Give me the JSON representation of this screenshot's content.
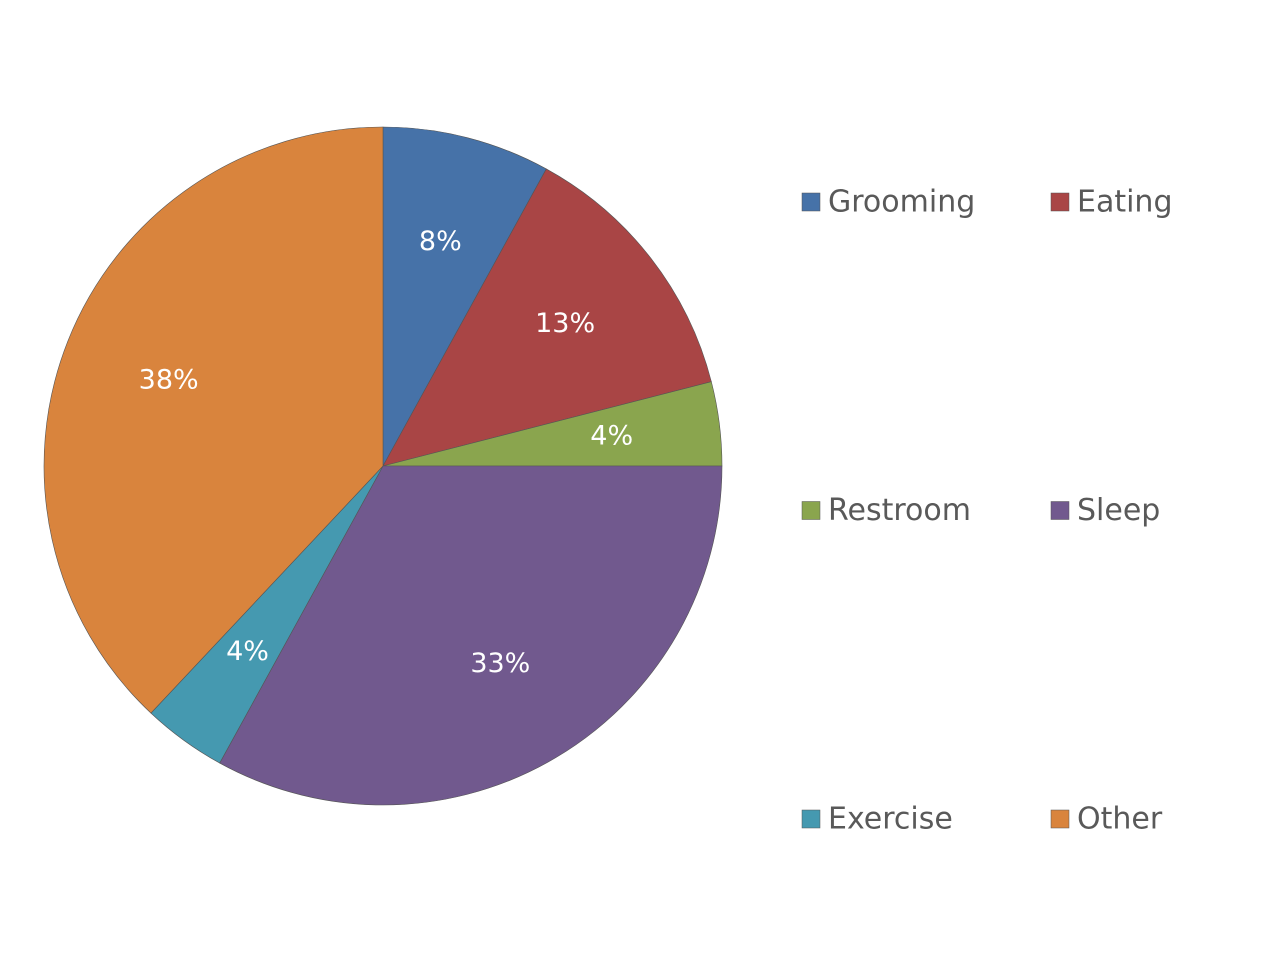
{
  "chart_data": {
    "type": "pie",
    "categories": [
      "Grooming",
      "Eating",
      "Restroom",
      "Sleep",
      "Exercise",
      "Other"
    ],
    "values": [
      8,
      13,
      4,
      33,
      4,
      38
    ],
    "value_labels": [
      "8%",
      "13%",
      "4%",
      "33%",
      "4%",
      "38%"
    ],
    "colors": [
      "#4672a8",
      "#a94545",
      "#8aa54e",
      "#71598e",
      "#4599b0",
      "#d9843d"
    ]
  }
}
